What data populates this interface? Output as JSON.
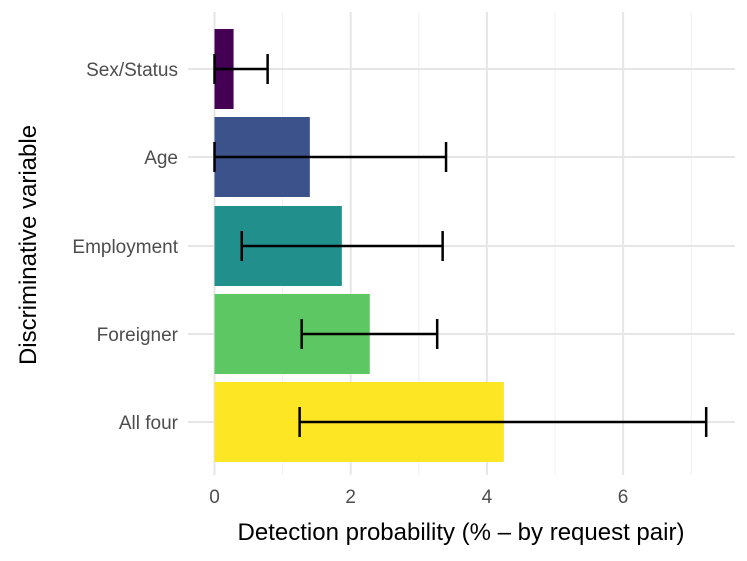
{
  "chart_data": {
    "type": "bar",
    "orientation": "horizontal",
    "xlabel": "Detection probability (% – by request pair)",
    "ylabel": "Discriminative variable",
    "xlim": [
      0,
      7.3
    ],
    "x_ticks": [
      0,
      2,
      4,
      6
    ],
    "grid": true,
    "legend": "none",
    "categories": [
      "Sex/Status",
      "Age",
      "Employment",
      "Foreigner",
      "All four"
    ],
    "values": [
      0.28,
      1.4,
      1.87,
      2.28,
      4.25
    ],
    "error_low": [
      0.0,
      0.0,
      0.4,
      1.28,
      1.25
    ],
    "error_high": [
      0.78,
      3.4,
      3.35,
      3.27,
      7.22
    ],
    "colors": [
      "#440154",
      "#3b528b",
      "#21908c",
      "#5dc863",
      "#fde725"
    ]
  }
}
